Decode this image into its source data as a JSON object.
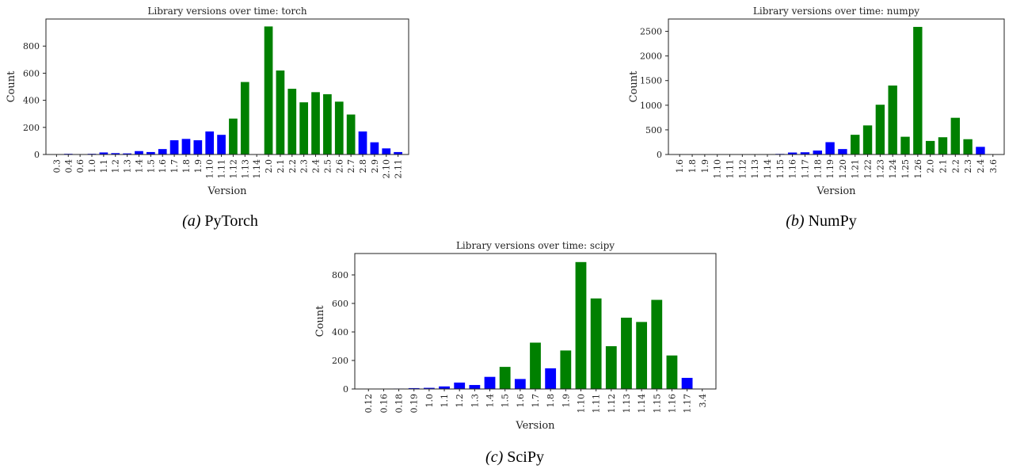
{
  "colors": {
    "pre": "#0000ff",
    "post": "#008000",
    "axis": "#222222"
  },
  "captions": [
    {
      "tag": "(a)",
      "name": "PyTorch"
    },
    {
      "tag": "(b)",
      "name": "NumPy"
    },
    {
      "tag": "(c)",
      "name": "SciPy"
    }
  ],
  "chart_data": [
    {
      "type": "bar",
      "title": "Library versions over time: torch",
      "xlabel": "Version",
      "ylabel": "Count",
      "ylim": [
        0,
        1000
      ],
      "yticks": [
        0,
        200,
        400,
        600,
        800
      ],
      "categories": [
        "0.3",
        "0.4",
        "0.6",
        "1.0",
        "1.1",
        "1.2",
        "1.3",
        "1.4",
        "1.5",
        "1.6",
        "1.7",
        "1.8",
        "1.9",
        "1.10",
        "1.11",
        "1.12",
        "1.13",
        "1.14",
        "2.0",
        "2.1",
        "2.2",
        "2.3",
        "2.4",
        "2.5",
        "2.6",
        "2.7",
        "2.8",
        "2.9",
        "2.10",
        "2.11"
      ],
      "values": [
        2,
        5,
        3,
        5,
        15,
        10,
        8,
        25,
        18,
        40,
        105,
        115,
        105,
        170,
        145,
        265,
        535,
        0,
        945,
        620,
        485,
        385,
        460,
        445,
        390,
        295,
        170,
        90,
        45,
        18
      ],
      "bar_colors": [
        "pre",
        "pre",
        "pre",
        "pre",
        "pre",
        "pre",
        "pre",
        "pre",
        "pre",
        "pre",
        "pre",
        "pre",
        "pre",
        "pre",
        "pre",
        "post",
        "post",
        "post",
        "post",
        "post",
        "post",
        "post",
        "post",
        "post",
        "post",
        "post",
        "pre",
        "pre",
        "pre",
        "pre"
      ]
    },
    {
      "type": "bar",
      "title": "Library versions over time: numpy",
      "xlabel": "Version",
      "ylabel": "Count",
      "ylim": [
        0,
        2750
      ],
      "yticks": [
        0,
        500,
        1000,
        1500,
        2000,
        2500
      ],
      "categories": [
        "1.6",
        "1.8",
        "1.9",
        "1.10",
        "1.11",
        "1.12",
        "1.13",
        "1.14",
        "1.15",
        "1.16",
        "1.17",
        "1.18",
        "1.19",
        "1.20",
        "1.21",
        "1.22",
        "1.23",
        "1.24",
        "1.25",
        "1.26",
        "2.0",
        "2.1",
        "2.2",
        "2.3",
        "2.4",
        "3.6"
      ],
      "values": [
        2,
        2,
        3,
        3,
        3,
        3,
        5,
        5,
        12,
        40,
        45,
        80,
        250,
        110,
        400,
        590,
        1010,
        1400,
        360,
        2590,
        275,
        350,
        745,
        310,
        155,
        0
      ],
      "bar_colors": [
        "pre",
        "pre",
        "pre",
        "pre",
        "pre",
        "pre",
        "pre",
        "pre",
        "pre",
        "pre",
        "pre",
        "pre",
        "pre",
        "pre",
        "post",
        "post",
        "post",
        "post",
        "post",
        "post",
        "post",
        "post",
        "post",
        "post",
        "pre",
        "pre"
      ]
    },
    {
      "type": "bar",
      "title": "Library versions over time: scipy",
      "xlabel": "Version",
      "ylabel": "Count",
      "ylim": [
        0,
        950
      ],
      "yticks": [
        0,
        200,
        400,
        600,
        800
      ],
      "categories": [
        "0.12",
        "0.16",
        "0.18",
        "0.19",
        "1.0",
        "1.1",
        "1.2",
        "1.3",
        "1.4",
        "1.5",
        "1.6",
        "1.7",
        "1.8",
        "1.9",
        "1.10",
        "1.11",
        "1.12",
        "1.13",
        "1.14",
        "1.15",
        "1.16",
        "1.17",
        "3.4"
      ],
      "values": [
        2,
        2,
        3,
        6,
        8,
        18,
        45,
        28,
        85,
        155,
        70,
        325,
        145,
        270,
        890,
        635,
        300,
        500,
        470,
        625,
        235,
        78,
        0
      ],
      "bar_colors": [
        "pre",
        "pre",
        "pre",
        "pre",
        "pre",
        "pre",
        "pre",
        "pre",
        "pre",
        "post",
        "pre",
        "post",
        "pre",
        "post",
        "post",
        "post",
        "post",
        "post",
        "post",
        "post",
        "post",
        "pre",
        "pre"
      ]
    }
  ]
}
